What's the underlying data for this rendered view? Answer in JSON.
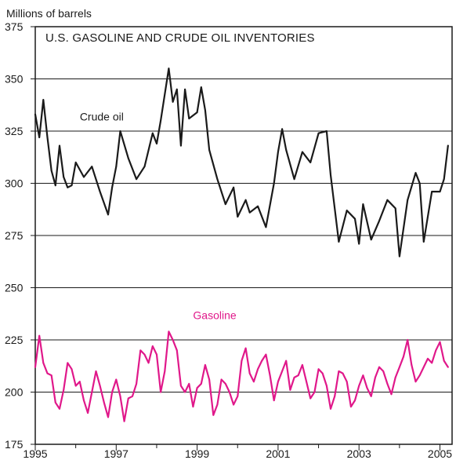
{
  "chart_data": {
    "type": "line",
    "title": "U.S. GASOLINE AND CRUDE OIL INVENTORIES",
    "units_label": "Millions of barrels",
    "xlabel": "",
    "ylabel": "",
    "xlim": [
      1995,
      2005.3
    ],
    "ylim": [
      175,
      375
    ],
    "yticks": [
      175,
      200,
      225,
      250,
      275,
      300,
      325,
      350,
      375
    ],
    "xticks": [
      "1995",
      "1997",
      "1999",
      "2001",
      "2003",
      "2005"
    ],
    "grid": "horizontal",
    "colors": {
      "crude": "#1a1a1a",
      "gasoline": "#e0188a",
      "grid": "#1a1a1a"
    },
    "series": [
      {
        "name": "Crude oil",
        "color": "#1a1a1a",
        "x": [
          1995.0,
          1995.1,
          1995.2,
          1995.3,
          1995.4,
          1995.5,
          1995.6,
          1995.7,
          1995.8,
          1995.9,
          1996.0,
          1996.2,
          1996.4,
          1996.6,
          1996.8,
          1996.9,
          1997.0,
          1997.1,
          1997.3,
          1997.5,
          1997.7,
          1997.9,
          1998.0,
          1998.1,
          1998.3,
          1998.4,
          1998.5,
          1998.6,
          1998.7,
          1998.8,
          1999.0,
          1999.1,
          1999.2,
          1999.3,
          1999.5,
          1999.7,
          1999.9,
          2000.0,
          2000.2,
          2000.3,
          2000.5,
          2000.7,
          2000.9,
          2001.0,
          2001.1,
          2001.2,
          2001.4,
          2001.6,
          2001.8,
          2002.0,
          2002.2,
          2002.3,
          2002.5,
          2002.7,
          2002.9,
          2003.0,
          2003.1,
          2003.3,
          2003.5,
          2003.7,
          2003.9,
          2004.0,
          2004.2,
          2004.4,
          2004.5,
          2004.6,
          2004.8,
          2005.0,
          2005.1,
          2005.2
        ],
        "values": [
          333,
          322,
          340,
          322,
          306,
          299,
          318,
          303,
          298,
          299,
          310,
          303,
          308,
          296,
          285,
          298,
          308,
          325,
          312,
          302,
          308,
          324,
          319,
          330,
          355,
          339,
          345,
          318,
          345,
          331,
          334,
          346,
          335,
          316,
          302,
          290,
          298,
          284,
          292,
          286,
          289,
          279,
          300,
          315,
          326,
          316,
          302,
          315,
          310,
          324,
          325,
          304,
          272,
          287,
          283,
          271,
          290,
          273,
          282,
          292,
          288,
          265,
          292,
          305,
          300,
          272,
          296,
          296,
          302,
          318
        ]
      },
      {
        "name": "Gasoline",
        "color": "#e0188a",
        "x": [
          1995.0,
          1995.1,
          1995.2,
          1995.3,
          1995.4,
          1995.5,
          1995.6,
          1995.7,
          1995.8,
          1995.9,
          1996.0,
          1996.1,
          1996.2,
          1996.3,
          1996.4,
          1996.5,
          1996.6,
          1996.7,
          1996.8,
          1996.9,
          1997.0,
          1997.1,
          1997.2,
          1997.3,
          1997.4,
          1997.5,
          1997.6,
          1997.7,
          1997.8,
          1997.9,
          1998.0,
          1998.1,
          1998.2,
          1998.3,
          1998.4,
          1998.5,
          1998.6,
          1998.7,
          1998.8,
          1998.9,
          1999.0,
          1999.1,
          1999.2,
          1999.3,
          1999.4,
          1999.5,
          1999.6,
          1999.7,
          1999.8,
          1999.9,
          2000.0,
          2000.1,
          2000.2,
          2000.3,
          2000.4,
          2000.5,
          2000.6,
          2000.7,
          2000.8,
          2000.9,
          2001.0,
          2001.1,
          2001.2,
          2001.3,
          2001.4,
          2001.5,
          2001.6,
          2001.7,
          2001.8,
          2001.9,
          2002.0,
          2002.1,
          2002.2,
          2002.3,
          2002.4,
          2002.5,
          2002.6,
          2002.7,
          2002.8,
          2002.9,
          2003.0,
          2003.1,
          2003.2,
          2003.3,
          2003.4,
          2003.5,
          2003.6,
          2003.7,
          2003.8,
          2003.9,
          2004.0,
          2004.1,
          2004.2,
          2004.3,
          2004.4,
          2004.5,
          2004.6,
          2004.7,
          2004.8,
          2004.9,
          2005.0,
          2005.1,
          2005.2
        ],
        "values": [
          212,
          227,
          214,
          209,
          208,
          195,
          192,
          201,
          214,
          211,
          203,
          205,
          196,
          190,
          200,
          210,
          203,
          195,
          188,
          200,
          206,
          198,
          186,
          197,
          198,
          204,
          220,
          218,
          214,
          222,
          218,
          200,
          210,
          229,
          225,
          220,
          203,
          200,
          204,
          193,
          202,
          204,
          213,
          206,
          189,
          194,
          206,
          204,
          200,
          194,
          198,
          215,
          221,
          209,
          205,
          211,
          215,
          218,
          208,
          196,
          205,
          210,
          215,
          201,
          207,
          208,
          213,
          205,
          197,
          200,
          211,
          209,
          203,
          192,
          198,
          210,
          209,
          205,
          193,
          196,
          203,
          208,
          202,
          198,
          207,
          212,
          210,
          204,
          199,
          207,
          212,
          217,
          225,
          213,
          205,
          208,
          212,
          216,
          214,
          220,
          224,
          215,
          212
        ]
      }
    ],
    "series_labels": [
      {
        "text": "Crude oil",
        "x": 1996.1,
        "y": 330,
        "color": "#1a1a1a"
      },
      {
        "text": "Gasoline",
        "x": 1998.9,
        "y": 235,
        "color": "#e0188a"
      }
    ]
  }
}
